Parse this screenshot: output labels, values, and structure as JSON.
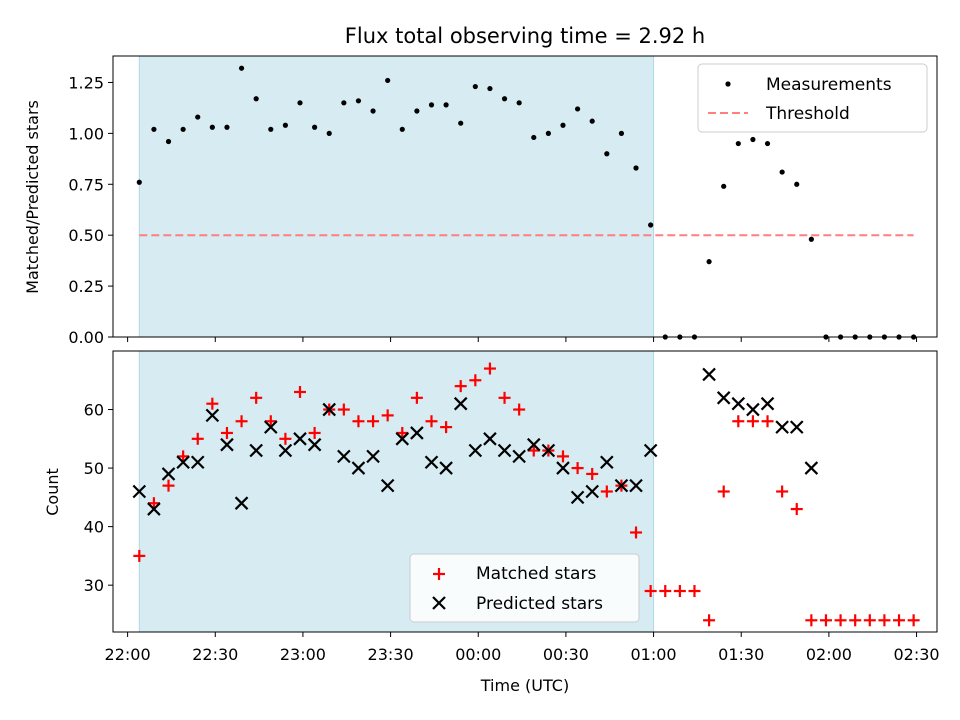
{
  "chart_data": [
    {
      "type": "scatter",
      "title": "Flux total observing time = 2.92 h",
      "ylabel": "Matched/Predicted stars",
      "xlim": [
        "21:55",
        "02:37"
      ],
      "ylim": [
        0,
        1.38
      ],
      "yticks": [
        "0.00",
        "0.25",
        "0.50",
        "0.75",
        "1.00",
        "1.25"
      ],
      "legend": {
        "placement": "top-right",
        "entries": [
          {
            "label": "Measurements",
            "marker": "dot",
            "color": "#000000"
          },
          {
            "label": "Threshold",
            "marker": "dashed-line",
            "color": "#ff7f7f"
          }
        ]
      },
      "threshold": {
        "value": 0.5,
        "x_start": "22:04",
        "x_end": "02:29"
      },
      "shaded_region": {
        "x_start": "22:04",
        "x_end": "01:00",
        "color": "#add8e6"
      },
      "series": [
        {
          "label": "Measurements",
          "color": "#000000",
          "x": [
            "22:04",
            "22:09",
            "22:14",
            "22:19",
            "22:24",
            "22:29",
            "22:34",
            "22:39",
            "22:44",
            "22:49",
            "22:54",
            "22:59",
            "23:04",
            "23:09",
            "23:14",
            "23:19",
            "23:24",
            "23:29",
            "23:34",
            "23:39",
            "23:44",
            "23:49",
            "23:54",
            "23:59",
            "00:04",
            "00:09",
            "00:14",
            "00:19",
            "00:24",
            "00:29",
            "00:34",
            "00:39",
            "00:44",
            "00:49",
            "00:54",
            "00:59",
            "01:04",
            "01:09",
            "01:14",
            "01:19",
            "01:24",
            "01:29",
            "01:34",
            "01:39",
            "01:44",
            "01:49",
            "01:54",
            "01:59",
            "02:04",
            "02:09",
            "02:14",
            "02:19",
            "02:24",
            "02:29"
          ],
          "y": [
            0.76,
            1.02,
            0.96,
            1.02,
            1.08,
            1.03,
            1.03,
            1.32,
            1.17,
            1.02,
            1.04,
            1.15,
            1.03,
            1.0,
            1.15,
            1.16,
            1.11,
            1.26,
            1.02,
            1.11,
            1.14,
            1.14,
            1.05,
            1.23,
            1.22,
            1.17,
            1.15,
            0.98,
            1.0,
            1.04,
            1.12,
            1.06,
            0.9,
            1.0,
            0.83,
            0.55,
            0,
            0,
            0,
            0.37,
            0.74,
            0.95,
            0.97,
            0.95,
            0.81,
            0.75,
            0.48,
            0,
            0,
            0,
            0,
            0,
            0,
            0
          ]
        }
      ]
    },
    {
      "type": "scatter",
      "xlabel": "Time (UTC)",
      "ylabel": "Count",
      "xlim": [
        "21:55",
        "02:37"
      ],
      "ylim": [
        22,
        70
      ],
      "xticks": [
        "22:00",
        "22:30",
        "23:00",
        "23:30",
        "00:00",
        "00:30",
        "01:00",
        "01:30",
        "02:00",
        "02:30"
      ],
      "yticks": [
        "30",
        "40",
        "50",
        "60"
      ],
      "legend": {
        "placement": "lower-center",
        "entries": [
          {
            "label": "Matched stars",
            "marker": "plus",
            "color": "#ff0000"
          },
          {
            "label": "Predicted stars",
            "marker": "x",
            "color": "#000000"
          }
        ]
      },
      "shaded_region": {
        "x_start": "22:04",
        "x_end": "01:00",
        "color": "#add8e6"
      },
      "series": [
        {
          "label": "Matched stars",
          "color": "#ff0000",
          "x": [
            "22:04",
            "22:09",
            "22:14",
            "22:19",
            "22:24",
            "22:29",
            "22:34",
            "22:39",
            "22:44",
            "22:49",
            "22:54",
            "22:59",
            "23:04",
            "23:09",
            "23:14",
            "23:19",
            "23:24",
            "23:29",
            "23:34",
            "23:39",
            "23:44",
            "23:49",
            "23:54",
            "23:59",
            "00:04",
            "00:09",
            "00:14",
            "00:19",
            "00:24",
            "00:29",
            "00:34",
            "00:39",
            "00:44",
            "00:49",
            "00:54",
            "00:59",
            "01:04",
            "01:09",
            "01:14",
            "01:19",
            "01:24",
            "01:29",
            "01:34",
            "01:39",
            "01:44",
            "01:49",
            "01:54",
            "01:59",
            "02:04",
            "02:09",
            "02:14",
            "02:19",
            "02:24",
            "02:29"
          ],
          "y": [
            35,
            44,
            47,
            52,
            55,
            61,
            56,
            58,
            62,
            58,
            55,
            63,
            56,
            60,
            60,
            58,
            58,
            59,
            56,
            62,
            58,
            57,
            64,
            65,
            67,
            62,
            60,
            53,
            53,
            52,
            50,
            49,
            46,
            47,
            39,
            29,
            29,
            29,
            29,
            24,
            46,
            58,
            58,
            58,
            46,
            43,
            24,
            24,
            24,
            24,
            24,
            24,
            24,
            24
          ]
        },
        {
          "label": "Predicted stars",
          "color": "#000000",
          "x": [
            "22:04",
            "22:09",
            "22:14",
            "22:19",
            "22:24",
            "22:29",
            "22:34",
            "22:39",
            "22:44",
            "22:49",
            "22:54",
            "22:59",
            "23:04",
            "23:09",
            "23:14",
            "23:19",
            "23:24",
            "23:29",
            "23:34",
            "23:39",
            "23:44",
            "23:49",
            "23:54",
            "23:59",
            "00:04",
            "00:09",
            "00:14",
            "00:19",
            "00:24",
            "00:29",
            "00:34",
            "00:39",
            "00:44",
            "00:49",
            "00:54",
            "00:59",
            "01:19",
            "01:24",
            "01:29",
            "01:34",
            "01:39",
            "01:44",
            "01:49",
            "01:54"
          ],
          "y": [
            46,
            43,
            49,
            51,
            51,
            59,
            54,
            44,
            53,
            57,
            53,
            55,
            54,
            60,
            52,
            50,
            52,
            47,
            55,
            56,
            51,
            50,
            61,
            53,
            55,
            53,
            52,
            54,
            53,
            50,
            45,
            46,
            51,
            47,
            47,
            53,
            66,
            62,
            61,
            60,
            61,
            57,
            57,
            50
          ]
        }
      ]
    }
  ]
}
